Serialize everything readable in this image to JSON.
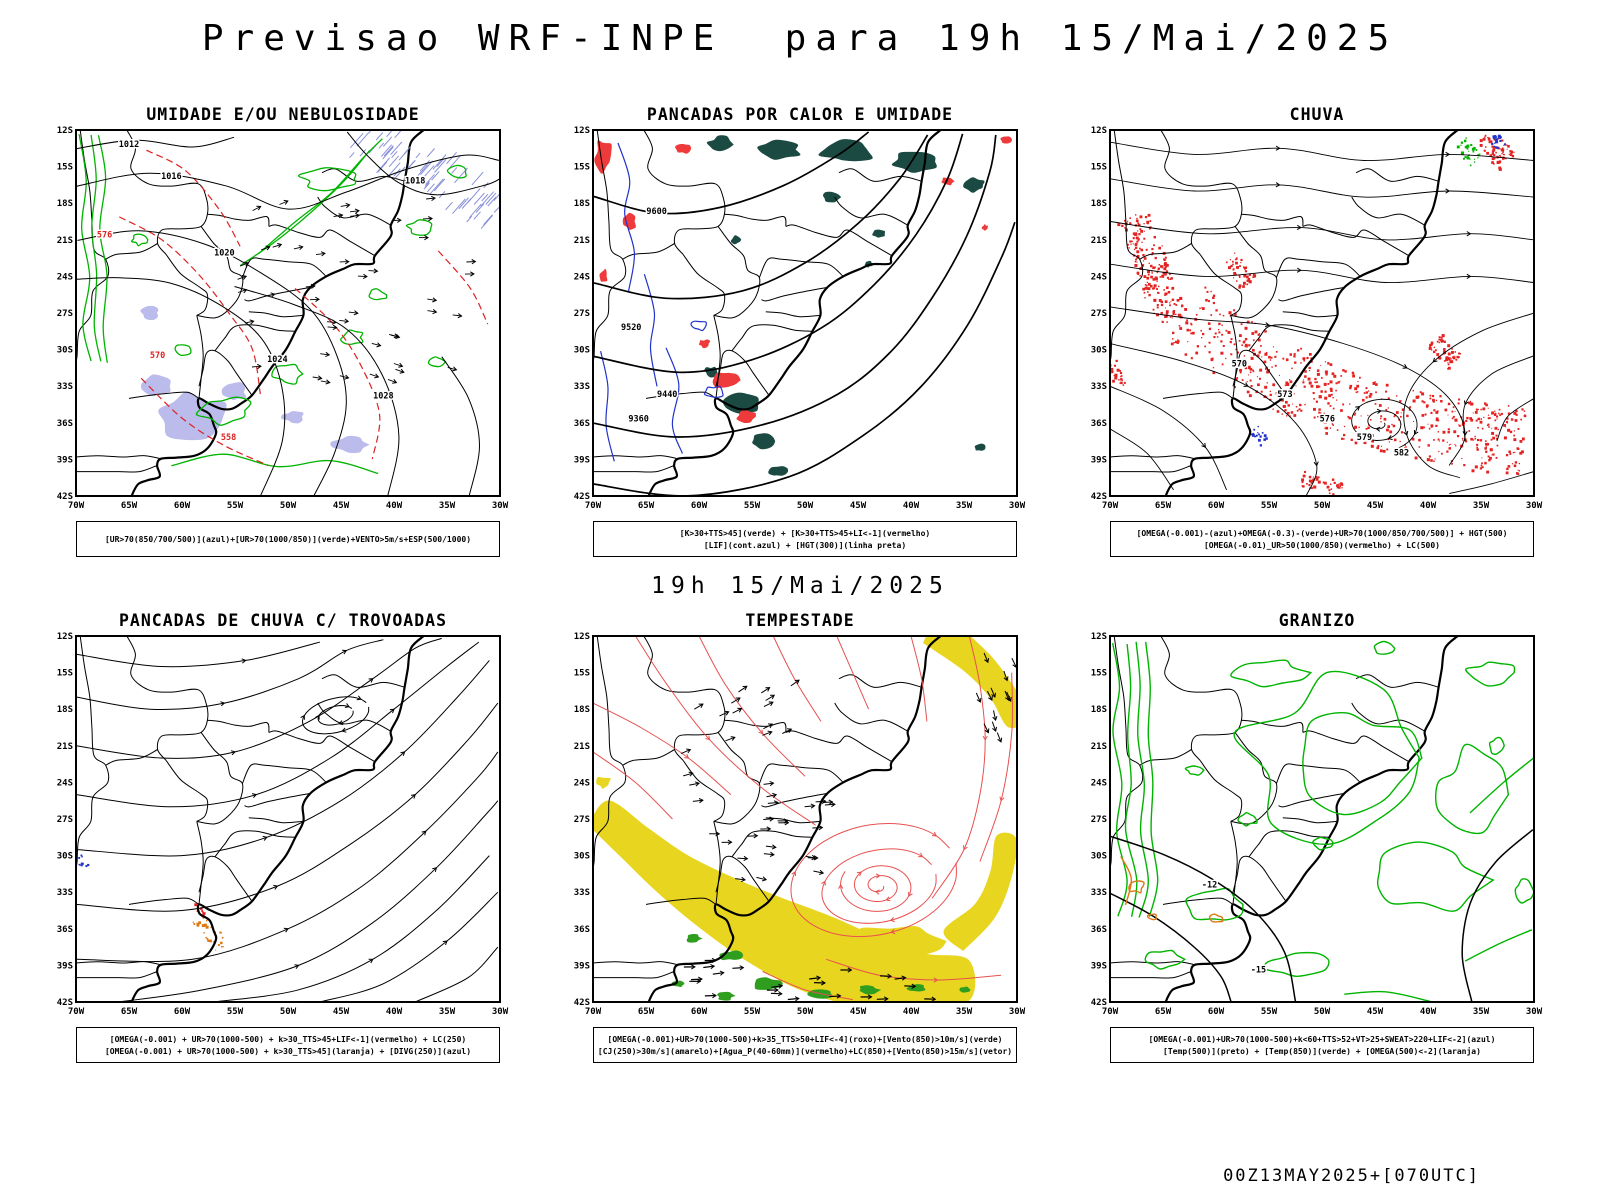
{
  "page_title": "Previsao WRF-INPE  para 19h 15/Mai/2025",
  "mid_label": "19h 15/Mai/2025",
  "footer_label": "00Z13MAY2025+[070UTC]",
  "axes": {
    "lat_ticks": [
      "12S",
      "15S",
      "18S",
      "21S",
      "24S",
      "27S",
      "30S",
      "33S",
      "36S",
      "39S",
      "42S"
    ],
    "lon_ticks": [
      "70W",
      "65W",
      "60W",
      "55W",
      "50W",
      "45W",
      "40W",
      "35W",
      "30W"
    ]
  },
  "colors": {
    "green": "#00b400",
    "teal": "#1b4a43",
    "red": "#dd2222",
    "red_fill": "#ee3a3a",
    "red_speck": "#e42222",
    "storm_red": "#e85050",
    "blue": "#2233cc",
    "lavender": "#bcbcec",
    "hatch_blue": "#8890d8",
    "yellow": "#e8d51f",
    "storm_green": "#2f9e1f",
    "orange": "#dd7711",
    "black": "#000000"
  },
  "panels": [
    {
      "title": "UMIDADE E/OU NEBULOSIDADE",
      "caption_lines": [
        "[UR>70(850/700/500)](azul)+[UR>70(1000/850)](verde)+VENTO>5m/s+ESP(500/1000)"
      ],
      "contour_labels": [
        "1012",
        "1016",
        "1018",
        "1020",
        "1024",
        "1028",
        "576",
        "570",
        "558"
      ]
    },
    {
      "title": "PANCADAS POR CALOR E UMIDADE",
      "caption_lines": [
        "[K>30+TTS>45](verde) + [K>30+TTS>45+LI<-1](vermelho)",
        "[LIF](cont.azul) + [HGT(300)](linha preta)"
      ],
      "contour_labels": [
        "9600",
        "9520",
        "9440",
        "9360"
      ]
    },
    {
      "title": "CHUVA",
      "caption_lines": [
        "[OMEGA(-0.001)-(azul)+OMEGA(-0.3)-(verde)+UR>70(1000/850/700/500)] + HGT(500)",
        "[OMEGA(-0.01)_UR>50(1000/850)(vermelho) + LC(500)"
      ],
      "contour_labels": [
        "570",
        "573",
        "576",
        "579",
        "582"
      ]
    },
    {
      "title": "PANCADAS DE CHUVA C/ TROVOADAS",
      "caption_lines": [
        "[OMEGA(-0.001) + UR>70(1000-500) + k>30_TTS>45+LIF<-1](vermelho) + LC(250)",
        "[OMEGA(-0.001) + UR>70(1000-500) + k>30_TTS>45](laranja) + [DIVG(250)](azul)"
      ],
      "contour_labels": []
    },
    {
      "title": "TEMPESTADE",
      "caption_lines": [
        "[OMEGA(-0.001)+UR>70(1000-500)+k>35_TTS>50+LIF<-4](roxo)+[Vento(850)>10m/s](verde)",
        "[CJ(250)>30m/s](amarelo)+[Agua_P(40-60mm)](vermelho)+LC(850)+[Vento(850)>15m/s](vetor)"
      ],
      "contour_labels": []
    },
    {
      "title": "GRANIZO",
      "caption_lines": [
        "[OMEGA(-0.001)+UR>70(1000-500)+k<60+TTS>52+VT>25+SWEAT>220+LIF<-2](azul)",
        "[Temp(500)](preto) + [Temp(850)](verde) + [OMEGA(500)<-2](laranja)"
      ],
      "contour_labels": [
        "-12",
        "-15"
      ]
    }
  ]
}
